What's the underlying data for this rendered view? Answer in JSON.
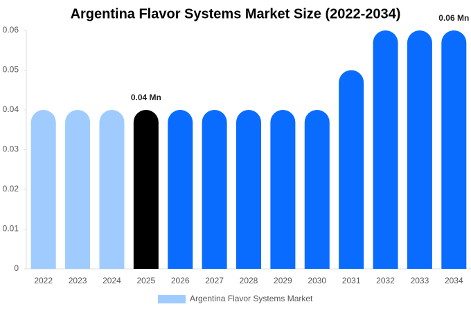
{
  "chart_data": {
    "type": "bar",
    "title": "Argentina Flavor Systems Market Size (2022-2034)",
    "categories": [
      "2022",
      "2023",
      "2024",
      "2025",
      "2026",
      "2027",
      "2028",
      "2029",
      "2030",
      "2031",
      "2032",
      "2033",
      "2034"
    ],
    "series": [
      {
        "name": "Argentina Flavor Systems Market",
        "color": "#a0cbff",
        "values": [
          0.04,
          0.04,
          0.04,
          0.04,
          0.04,
          0.04,
          0.04,
          0.04,
          0.04,
          0.05,
          0.06,
          0.06,
          0.06
        ],
        "value_labels": [
          null,
          null,
          null,
          "0.04 Mn",
          null,
          null,
          null,
          null,
          null,
          null,
          null,
          null,
          "0.06 Mn"
        ],
        "bar_colors": [
          "#a0cbff",
          "#a0cbff",
          "#a0cbff",
          "#000000",
          "#0a6cff",
          "#0a6cff",
          "#0a6cff",
          "#0a6cff",
          "#0a6cff",
          "#0a6cff",
          "#0a6cff",
          "#0a6cff",
          "#0a6cff"
        ]
      }
    ],
    "ylim": [
      0,
      0.06
    ],
    "yticks": [
      0,
      0.01,
      0.02,
      0.03,
      0.04,
      0.05,
      0.06
    ],
    "grid": false,
    "legend": "bottom"
  }
}
